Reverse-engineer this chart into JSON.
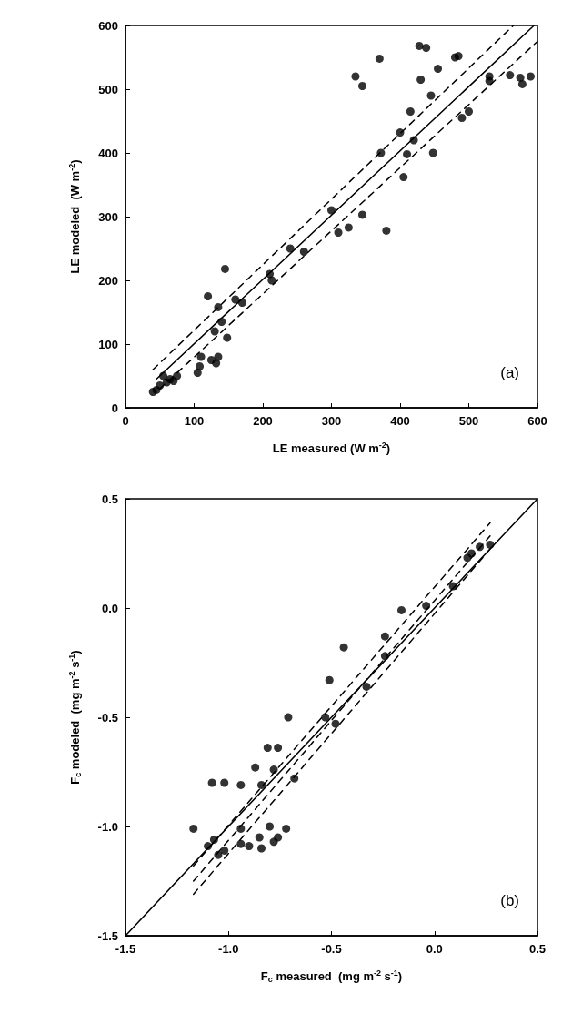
{
  "chart_data": [
    {
      "type": "scatter",
      "xlabel": "LE measured (W m$^{-2}$)",
      "ylabel": "LE modeled  (W m$^{-2}$)",
      "xlim": [
        0,
        600
      ],
      "ylim": [
        0,
        600
      ],
      "xticks": [
        0,
        100,
        200,
        300,
        400,
        500,
        600
      ],
      "yticks": [
        0,
        100,
        200,
        300,
        400,
        500,
        600
      ],
      "annotations": [
        "(a)"
      ],
      "series": [
        {
          "type": "scatter",
          "marker": "circle",
          "color": "#000000",
          "x": [
            40,
            45,
            50,
            55,
            60,
            65,
            70,
            75,
            105,
            108,
            110,
            120,
            125,
            130,
            132,
            135,
            135,
            140,
            145,
            148,
            160,
            170,
            210,
            213,
            240,
            260,
            300,
            310,
            325,
            335,
            345,
            345,
            370,
            372,
            380,
            400,
            405,
            410,
            415,
            420,
            428,
            430,
            438,
            445,
            448,
            455,
            480,
            485,
            490,
            500,
            530,
            530,
            560,
            575,
            578,
            590
          ],
          "values": [
            25,
            28,
            35,
            50,
            40,
            45,
            42,
            50,
            55,
            65,
            80,
            175,
            75,
            120,
            70,
            80,
            158,
            135,
            218,
            110,
            170,
            165,
            210,
            200,
            250,
            245,
            310,
            275,
            283,
            520,
            505,
            303,
            548,
            400,
            278,
            432,
            362,
            398,
            465,
            420,
            568,
            515,
            565,
            490,
            400,
            532,
            550,
            552,
            455,
            465,
            520,
            513,
            522,
            518,
            508,
            520
          ]
        },
        {
          "type": "line",
          "marker": "none",
          "line_style": "solid",
          "color": "#000000",
          "x": [
            45,
            595
          ],
          "values": [
            45,
            600
          ]
        },
        {
          "type": "line",
          "marker": "none",
          "line_style": "dashed",
          "color": "#000000",
          "x": [
            40,
            565
          ],
          "values": [
            60,
            600
          ]
        },
        {
          "type": "line",
          "marker": "none",
          "line_style": "dashed",
          "color": "#000000",
          "x": [
            50,
            600
          ],
          "values": [
            30,
            575
          ]
        }
      ]
    },
    {
      "type": "scatter",
      "xlabel": "F$_{c}$ measured  (mg m$^{-2}$ s$^{-1}$)",
      "ylabel": "F$_{c}$ modeled  (mg m$^{-2}$ s$^{-1}$)",
      "xlim": [
        -1.5,
        0.5
      ],
      "ylim": [
        -1.5,
        0.5
      ],
      "xticks": [
        -1.5,
        {
          "value": -1,
          "label": "-1.0"
        },
        -0.5,
        {
          "value": 0,
          "label": "0.0"
        },
        0.5
      ],
      "yticks": [
        -1.5,
        {
          "value": -1,
          "label": "-1.0"
        },
        -0.5,
        {
          "value": 0,
          "label": "0.0"
        },
        0.5
      ],
      "annotations": [
        "(b)"
      ],
      "series": [
        {
          "type": "scatter",
          "marker": "circle",
          "color": "#000000",
          "x": [
            -1.17,
            -0.71,
            -0.53,
            -0.81,
            -0.76,
            -0.87,
            -0.78,
            -1.08,
            -1.02,
            -0.94,
            -0.84,
            -0.68,
            -0.72,
            -0.8,
            -0.94,
            -1.1,
            -1.07,
            -1.05,
            -1.02,
            -0.94,
            -0.9,
            -0.85,
            -0.84,
            -0.78,
            -0.76,
            -0.44,
            -0.51,
            -0.24,
            -0.16,
            -0.48,
            -0.33,
            -0.24,
            -0.04,
            0.09,
            0.16,
            0.18,
            0.22,
            0.27
          ],
          "values": [
            -1.01,
            -0.5,
            -0.5,
            -0.64,
            -0.64,
            -0.73,
            -0.74,
            -0.8,
            -0.8,
            -0.81,
            -0.81,
            -0.78,
            -1.01,
            -1.0,
            -1.01,
            -1.09,
            -1.06,
            -1.13,
            -1.11,
            -1.08,
            -1.09,
            -1.05,
            -1.1,
            -1.07,
            -1.05,
            -0.18,
            -0.33,
            -0.13,
            -0.01,
            -0.53,
            -0.36,
            -0.22,
            0.01,
            0.1,
            0.23,
            0.25,
            0.28,
            0.29
          ]
        },
        {
          "type": "line",
          "marker": "none",
          "line_style": "solid",
          "color": "#000000",
          "x": [
            -1.5,
            0.5
          ],
          "values": [
            -1.5,
            0.5
          ]
        },
        {
          "type": "line",
          "marker": "none",
          "line_style": "dashed",
          "color": "#000000",
          "x": [
            -1.17,
            0.27
          ],
          "values": [
            -1.25,
            0.33
          ]
        },
        {
          "type": "line",
          "marker": "none",
          "line_style": "dashed",
          "color": "#000000",
          "x": [
            -1.17,
            0.27
          ],
          "values": [
            -1.18,
            0.39
          ]
        },
        {
          "type": "line",
          "marker": "none",
          "line_style": "dashed",
          "color": "#000000",
          "x": [
            -1.17,
            0.27
          ],
          "values": [
            -1.31,
            0.27
          ]
        }
      ]
    }
  ]
}
